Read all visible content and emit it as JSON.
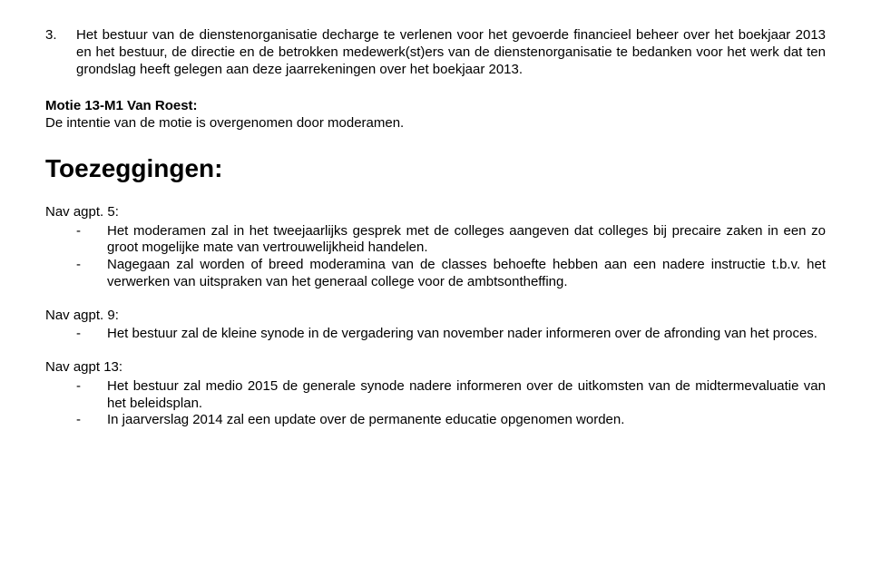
{
  "item3": {
    "number": "3.",
    "text": "Het bestuur van de dienstenorganisatie decharge te verlenen voor het gevoerde financieel beheer over het boekjaar 2013 en het bestuur, de directie en de betrokken medewerk(st)ers van de dienstenorganisatie te bedanken voor het werk dat ten grondslag heeft gelegen aan deze jaarrekeningen over het boekjaar 2013."
  },
  "motie": {
    "title": "Motie 13-M1 Van Roest:",
    "text": "De intentie van de motie is overgenomen door moderamen."
  },
  "toezeggingen_heading": "Toezeggingen:",
  "nav5": {
    "label": "Nav agpt. 5:",
    "bullets": [
      "Het moderamen zal in het tweejaarlijks gesprek met de colleges aangeven dat colleges bij precaire zaken in een zo groot mogelijke mate van vertrouwelijkheid handelen.",
      "Nagegaan zal worden of breed moderamina van de classes behoefte hebben aan een nadere instructie t.b.v. het verwerken van uitspraken van het generaal college voor de ambtsontheffing."
    ]
  },
  "nav9": {
    "label": "Nav agpt. 9:",
    "bullets": [
      "Het bestuur zal de kleine synode in de vergadering van november nader informeren over de afronding van het proces."
    ]
  },
  "nav13": {
    "label": "Nav agpt 13:",
    "bullets": [
      "Het bestuur zal medio 2015 de generale synode nadere informeren over de uitkomsten van de midtermevaluatie van het beleidsplan.",
      "In jaarverslag 2014 zal een update over de permanente educatie opgenomen worden."
    ]
  },
  "dash": "-"
}
